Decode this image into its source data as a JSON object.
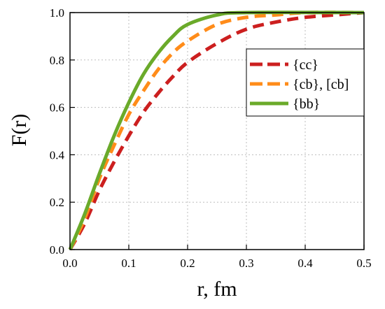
{
  "chart_data": {
    "type": "line",
    "title": "",
    "xlabel": "r, fm",
    "ylabel": "F(r)",
    "xlim": [
      0.0,
      0.5
    ],
    "ylim": [
      0.0,
      1.0
    ],
    "xticks": [
      "0.0",
      "0.1",
      "0.2",
      "0.3",
      "0.4",
      "0.5"
    ],
    "yticks": [
      "0.0",
      "0.2",
      "0.4",
      "0.6",
      "0.8",
      "1.0"
    ],
    "grid": true,
    "legend_position": "top-right",
    "series": [
      {
        "name": "{cc}",
        "color": "#cc1f1f",
        "style": "dashed",
        "points": [
          [
            0,
            0
          ],
          [
            0.025,
            0.11
          ],
          [
            0.05,
            0.25
          ],
          [
            0.075,
            0.37
          ],
          [
            0.1,
            0.48
          ],
          [
            0.125,
            0.58
          ],
          [
            0.15,
            0.66
          ],
          [
            0.175,
            0.73
          ],
          [
            0.2,
            0.79
          ],
          [
            0.25,
            0.87
          ],
          [
            0.3,
            0.93
          ],
          [
            0.35,
            0.96
          ],
          [
            0.4,
            0.98
          ],
          [
            0.45,
            0.99
          ],
          [
            0.5,
            1.0
          ]
        ]
      },
      {
        "name": "{cb}, [cb]",
        "color": "#ff8c1a",
        "style": "dashed",
        "points": [
          [
            0,
            0
          ],
          [
            0.025,
            0.13
          ],
          [
            0.05,
            0.3
          ],
          [
            0.075,
            0.44
          ],
          [
            0.1,
            0.57
          ],
          [
            0.125,
            0.67
          ],
          [
            0.15,
            0.76
          ],
          [
            0.175,
            0.83
          ],
          [
            0.2,
            0.88
          ],
          [
            0.25,
            0.95
          ],
          [
            0.3,
            0.98
          ],
          [
            0.35,
            0.99
          ],
          [
            0.4,
            1.0
          ],
          [
            0.5,
            1.0
          ]
        ]
      },
      {
        "name": "{bb}",
        "color": "#6aaa2a",
        "style": "solid",
        "points": [
          [
            0,
            0
          ],
          [
            0.025,
            0.15
          ],
          [
            0.05,
            0.32
          ],
          [
            0.075,
            0.48
          ],
          [
            0.1,
            0.62
          ],
          [
            0.125,
            0.74
          ],
          [
            0.15,
            0.83
          ],
          [
            0.175,
            0.9
          ],
          [
            0.2,
            0.95
          ],
          [
            0.25,
            0.99
          ],
          [
            0.3,
            1.0
          ],
          [
            0.5,
            1.0
          ]
        ]
      }
    ]
  }
}
